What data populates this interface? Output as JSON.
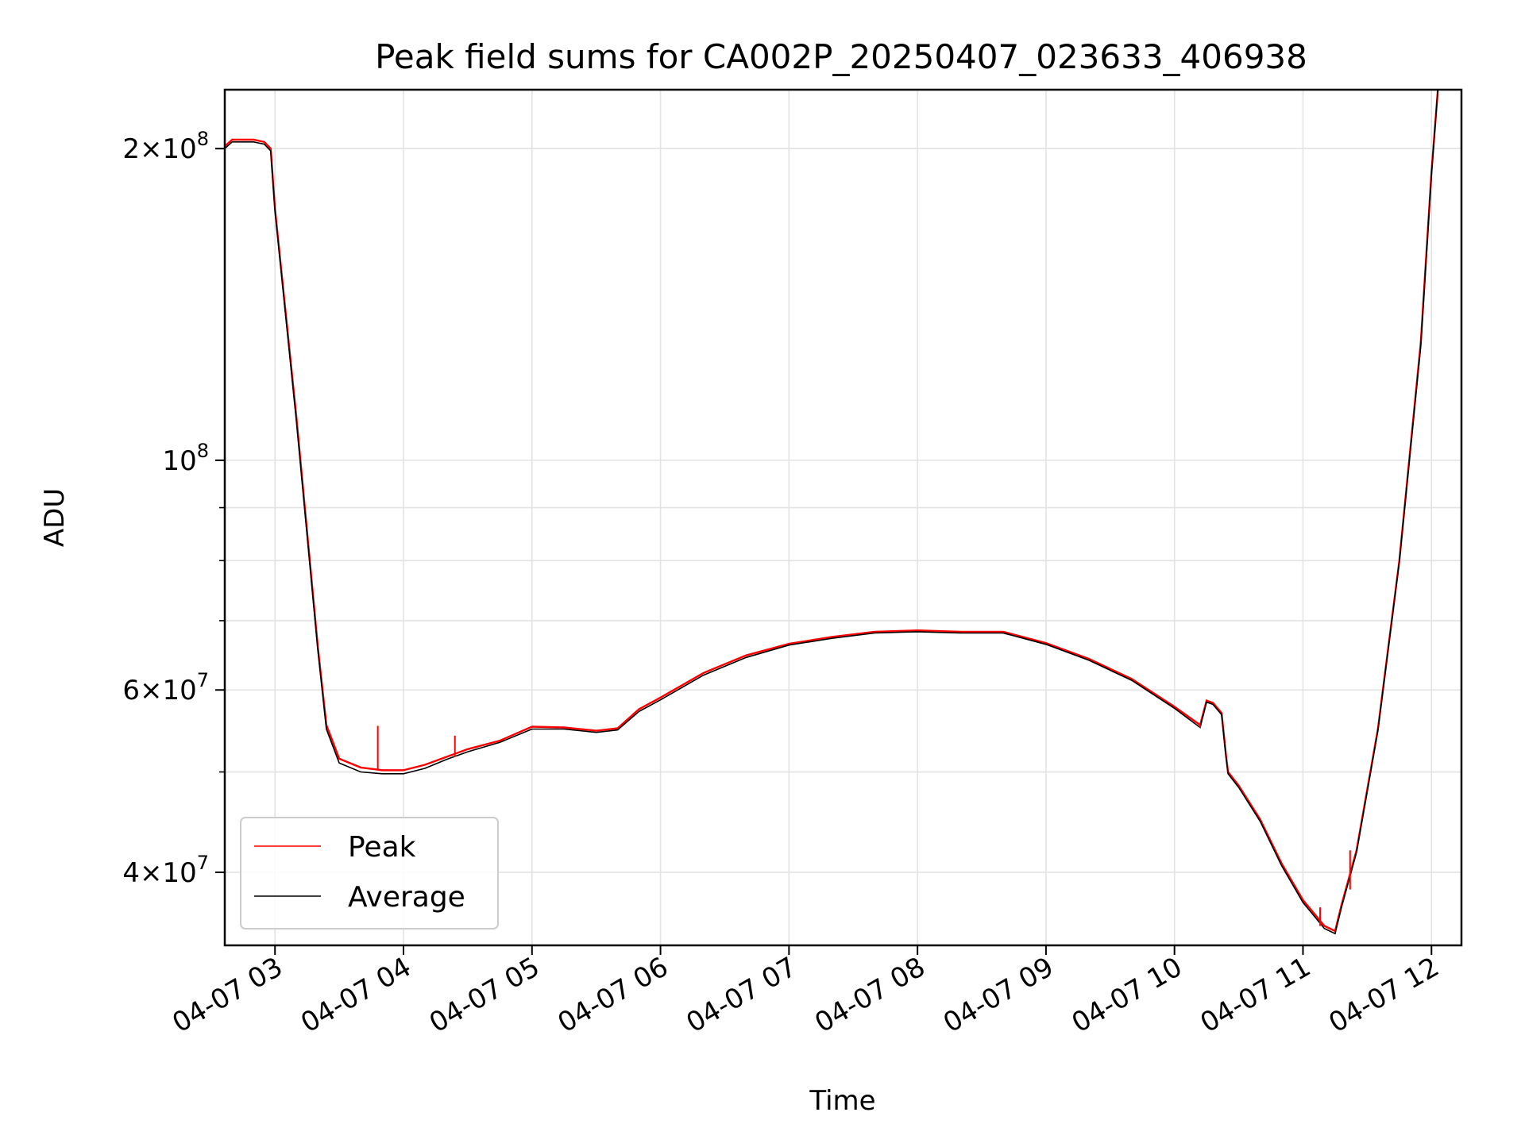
{
  "chart_data": {
    "type": "line",
    "title": "Peak field sums for CA002P_20250407_023633_406938",
    "xlabel": "Time",
    "ylabel": "ADU",
    "yscale": "log",
    "grid": true,
    "legend_position": "lower-left",
    "xlim": [
      "2025-04-07T02:36:33",
      "2025-04-07T12:14:00"
    ],
    "ylim": [
      34000000,
      228000000
    ],
    "x_ticks": [
      {
        "label": "04-07 03",
        "value": "2025-04-07T03:00:00"
      },
      {
        "label": "04-07 04",
        "value": "2025-04-07T04:00:00"
      },
      {
        "label": "04-07 05",
        "value": "2025-04-07T05:00:00"
      },
      {
        "label": "04-07 06",
        "value": "2025-04-07T06:00:00"
      },
      {
        "label": "04-07 07",
        "value": "2025-04-07T07:00:00"
      },
      {
        "label": "04-07 08",
        "value": "2025-04-07T08:00:00"
      },
      {
        "label": "04-07 09",
        "value": "2025-04-07T09:00:00"
      },
      {
        "label": "04-07 10",
        "value": "2025-04-07T10:00:00"
      },
      {
        "label": "04-07 11",
        "value": "2025-04-07T11:00:00"
      },
      {
        "label": "04-07 12",
        "value": "2025-04-07T12:00:00"
      }
    ],
    "y_ticks_major": [
      {
        "base": "2",
        "exp": "8",
        "value": 200000000
      },
      {
        "base": "",
        "exp": "8",
        "value": 100000000
      },
      {
        "base": "6",
        "exp": "7",
        "value": 60000000
      },
      {
        "base": "4",
        "exp": "7",
        "value": 40000000
      }
    ],
    "y_ticks_minor": [
      50000000,
      70000000,
      80000000,
      90000000
    ],
    "series": [
      {
        "name": "Peak",
        "color": "#ff0000",
        "x": [
          "2025-04-07T02:36:33",
          "2025-04-07T02:40:00",
          "2025-04-07T02:45:00",
          "2025-04-07T02:50:00",
          "2025-04-07T02:55:00",
          "2025-04-07T02:58:00",
          "2025-04-07T03:00:00",
          "2025-04-07T03:10:00",
          "2025-04-07T03:20:00",
          "2025-04-07T03:24:00",
          "2025-04-07T03:30:00",
          "2025-04-07T03:40:00",
          "2025-04-07T03:50:00",
          "2025-04-07T04:00:00",
          "2025-04-07T04:10:00",
          "2025-04-07T04:20:00",
          "2025-04-07T04:30:00",
          "2025-04-07T04:45:00",
          "2025-04-07T05:00:00",
          "2025-04-07T05:15:00",
          "2025-04-07T05:30:00",
          "2025-04-07T05:40:00",
          "2025-04-07T05:50:00",
          "2025-04-07T06:00:00",
          "2025-04-07T06:20:00",
          "2025-04-07T06:40:00",
          "2025-04-07T07:00:00",
          "2025-04-07T07:20:00",
          "2025-04-07T07:40:00",
          "2025-04-07T08:00:00",
          "2025-04-07T08:20:00",
          "2025-04-07T08:40:00",
          "2025-04-07T09:00:00",
          "2025-04-07T09:20:00",
          "2025-04-07T09:40:00",
          "2025-04-07T10:00:00",
          "2025-04-07T10:12:00",
          "2025-04-07T10:15:00",
          "2025-04-07T10:18:00",
          "2025-04-07T10:22:00",
          "2025-04-07T10:24:00",
          "2025-04-07T10:25:00",
          "2025-04-07T10:30:00",
          "2025-04-07T10:40:00",
          "2025-04-07T10:50:00",
          "2025-04-07T11:00:00",
          "2025-04-07T11:10:00",
          "2025-04-07T11:15:00",
          "2025-04-07T11:18:00",
          "2025-04-07T11:25:00",
          "2025-04-07T11:35:00",
          "2025-04-07T11:45:00",
          "2025-04-07T11:55:00",
          "2025-04-07T12:00:00",
          "2025-04-07T12:03:00"
        ],
        "values": [
          201000000,
          204000000,
          204000000,
          204000000,
          203000000,
          200000000,
          175000000,
          110000000,
          66000000,
          55500000,
          51500000,
          50500000,
          50200000,
          50200000,
          50800000,
          51700000,
          52600000,
          53600000,
          55300000,
          55200000,
          54800000,
          55100000,
          57500000,
          59000000,
          62300000,
          64800000,
          66500000,
          67500000,
          68300000,
          68500000,
          68300000,
          68300000,
          66600000,
          64300000,
          61500000,
          57800000,
          55500000,
          58600000,
          58300000,
          57000000,
          52000000,
          50000000,
          48500000,
          45000000,
          40800000,
          37600000,
          35500000,
          35100000,
          37200000,
          42000000,
          55000000,
          80000000,
          130000000,
          190000000,
          228000000
        ]
      },
      {
        "name": "Average",
        "color": "#000000",
        "x": [
          "2025-04-07T02:36:33",
          "2025-04-07T02:40:00",
          "2025-04-07T02:45:00",
          "2025-04-07T02:50:00",
          "2025-04-07T02:55:00",
          "2025-04-07T02:58:00",
          "2025-04-07T03:00:00",
          "2025-04-07T03:10:00",
          "2025-04-07T03:20:00",
          "2025-04-07T03:24:00",
          "2025-04-07T03:30:00",
          "2025-04-07T03:40:00",
          "2025-04-07T03:50:00",
          "2025-04-07T04:00:00",
          "2025-04-07T04:10:00",
          "2025-04-07T04:20:00",
          "2025-04-07T04:30:00",
          "2025-04-07T04:45:00",
          "2025-04-07T05:00:00",
          "2025-04-07T05:15:00",
          "2025-04-07T05:30:00",
          "2025-04-07T05:40:00",
          "2025-04-07T05:50:00",
          "2025-04-07T06:00:00",
          "2025-04-07T06:20:00",
          "2025-04-07T06:40:00",
          "2025-04-07T07:00:00",
          "2025-04-07T07:20:00",
          "2025-04-07T07:40:00",
          "2025-04-07T08:00:00",
          "2025-04-07T08:20:00",
          "2025-04-07T08:40:00",
          "2025-04-07T09:00:00",
          "2025-04-07T09:20:00",
          "2025-04-07T09:40:00",
          "2025-04-07T10:00:00",
          "2025-04-07T10:12:00",
          "2025-04-07T10:15:00",
          "2025-04-07T10:18:00",
          "2025-04-07T10:22:00",
          "2025-04-07T10:24:00",
          "2025-04-07T10:25:00",
          "2025-04-07T10:30:00",
          "2025-04-07T10:40:00",
          "2025-04-07T10:50:00",
          "2025-04-07T11:00:00",
          "2025-04-07T11:10:00",
          "2025-04-07T11:15:00",
          "2025-04-07T11:18:00",
          "2025-04-07T11:25:00",
          "2025-04-07T11:35:00",
          "2025-04-07T11:45:00",
          "2025-04-07T11:55:00",
          "2025-04-07T12:00:00",
          "2025-04-07T12:03:00"
        ],
        "values": [
          200000000,
          203000000,
          203000000,
          203000000,
          202000000,
          199000000,
          174000000,
          109000000,
          65500000,
          55000000,
          51000000,
          50000000,
          49800000,
          49800000,
          50400000,
          51400000,
          52300000,
          53400000,
          55000000,
          55000000,
          54600000,
          54900000,
          57200000,
          58700000,
          62000000,
          64500000,
          66300000,
          67300000,
          68100000,
          68300000,
          68100000,
          68100000,
          66400000,
          64100000,
          61300000,
          57600000,
          55200000,
          58400000,
          58100000,
          56800000,
          51800000,
          49800000,
          48300000,
          44800000,
          40600000,
          37400000,
          35300000,
          34900000,
          37000000,
          41800000,
          54800000,
          79800000,
          129000000,
          189000000,
          228000000
        ]
      }
    ],
    "annotations_spikes": [
      {
        "series": "Peak",
        "x": "2025-04-07T03:48:00",
        "y": 55400000
      },
      {
        "series": "Peak",
        "x": "2025-04-07T04:24:00",
        "y": 54200000
      },
      {
        "series": "Peak",
        "x": "2025-04-07T10:12:00",
        "y": 55200000
      },
      {
        "series": "Peak",
        "x": "2025-04-07T11:08:00",
        "y": 37000000
      },
      {
        "series": "Peak",
        "x": "2025-04-07T11:22:00",
        "y": 38500000
      }
    ]
  }
}
